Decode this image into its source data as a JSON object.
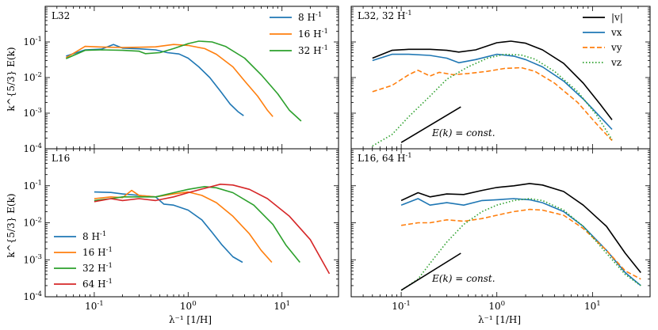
{
  "figure": {
    "ylabel": "k^{5/3} E(k)",
    "xlabel": "λ⁻¹ [1/H]",
    "colors": {
      "blue": "#1f77b4",
      "orange": "#ff7f0e",
      "green": "#2ca02c",
      "red": "#d62728",
      "black": "#000000"
    }
  },
  "chart_data": [
    {
      "panel": "top-left",
      "type": "line",
      "title": "L32",
      "xscale": "log",
      "yscale": "log",
      "xlim": [
        0.03,
        40
      ],
      "ylim": [
        0.0001,
        1
      ],
      "xticks": [],
      "yticks": [
        "10^-4",
        "10^-3",
        "10^-2",
        "10^-1"
      ],
      "legend": "top-right",
      "series": [
        {
          "name": "8 H^-1",
          "color": "#1f77b4",
          "style": "solid",
          "points": [
            [
              0.05,
              0.04
            ],
            [
              0.08,
              0.06
            ],
            [
              0.12,
              0.063
            ],
            [
              0.16,
              0.085
            ],
            [
              0.2,
              0.067
            ],
            [
              0.3,
              0.064
            ],
            [
              0.45,
              0.06
            ],
            [
              0.6,
              0.05
            ],
            [
              0.8,
              0.046
            ],
            [
              1.0,
              0.035
            ],
            [
              1.3,
              0.02
            ],
            [
              1.7,
              0.01
            ],
            [
              2.2,
              0.0042
            ],
            [
              2.8,
              0.0018
            ],
            [
              3.4,
              0.0011
            ],
            [
              3.9,
              0.00085
            ]
          ]
        },
        {
          "name": "16 H^-1",
          "color": "#ff7f0e",
          "style": "solid",
          "points": [
            [
              0.05,
              0.036
            ],
            [
              0.08,
              0.075
            ],
            [
              0.12,
              0.072
            ],
            [
              0.2,
              0.07
            ],
            [
              0.3,
              0.071
            ],
            [
              0.45,
              0.073
            ],
            [
              0.7,
              0.085
            ],
            [
              1.0,
              0.08
            ],
            [
              1.5,
              0.065
            ],
            [
              2.0,
              0.045
            ],
            [
              3.0,
              0.02
            ],
            [
              4.0,
              0.008
            ],
            [
              5.5,
              0.003
            ],
            [
              7.0,
              0.0012
            ],
            [
              8.0,
              0.0008
            ]
          ]
        },
        {
          "name": "32 H^-1",
          "color": "#2ca02c",
          "style": "solid",
          "points": [
            [
              0.05,
              0.034
            ],
            [
              0.08,
              0.058
            ],
            [
              0.12,
              0.06
            ],
            [
              0.2,
              0.058
            ],
            [
              0.3,
              0.055
            ],
            [
              0.35,
              0.047
            ],
            [
              0.5,
              0.05
            ],
            [
              0.7,
              0.065
            ],
            [
              1.0,
              0.09
            ],
            [
              1.3,
              0.105
            ],
            [
              1.8,
              0.1
            ],
            [
              2.5,
              0.075
            ],
            [
              4.0,
              0.035
            ],
            [
              6.0,
              0.012
            ],
            [
              9.0,
              0.0035
            ],
            [
              12.0,
              0.0012
            ],
            [
              16.0,
              0.0006
            ]
          ]
        }
      ]
    },
    {
      "panel": "top-right",
      "type": "line",
      "title": "L32, 32 H^-1",
      "xscale": "log",
      "yscale": "log",
      "xlim": [
        0.03,
        40
      ],
      "ylim": [
        0.0001,
        1
      ],
      "legend": "top-right",
      "annotation": "E(k) = const.",
      "series": [
        {
          "name": "|v|",
          "color": "#000000",
          "style": "solid",
          "points": [
            [
              0.05,
              0.035
            ],
            [
              0.08,
              0.058
            ],
            [
              0.12,
              0.062
            ],
            [
              0.2,
              0.062
            ],
            [
              0.3,
              0.058
            ],
            [
              0.4,
              0.052
            ],
            [
              0.6,
              0.06
            ],
            [
              1.0,
              0.095
            ],
            [
              1.4,
              0.105
            ],
            [
              2.0,
              0.092
            ],
            [
              3.0,
              0.06
            ],
            [
              5.0,
              0.025
            ],
            [
              8.0,
              0.007
            ],
            [
              12.0,
              0.0018
            ],
            [
              16.0,
              0.00065
            ]
          ]
        },
        {
          "name": "v_x",
          "color": "#1f77b4",
          "style": "solid",
          "points": [
            [
              0.05,
              0.03
            ],
            [
              0.08,
              0.045
            ],
            [
              0.12,
              0.045
            ],
            [
              0.2,
              0.042
            ],
            [
              0.3,
              0.035
            ],
            [
              0.4,
              0.026
            ],
            [
              0.6,
              0.032
            ],
            [
              1.0,
              0.045
            ],
            [
              1.5,
              0.04
            ],
            [
              2.0,
              0.032
            ],
            [
              3.0,
              0.02
            ],
            [
              5.0,
              0.008
            ],
            [
              8.0,
              0.0025
            ],
            [
              12.0,
              0.0008
            ],
            [
              16.0,
              0.00035
            ]
          ]
        },
        {
          "name": "v_y",
          "color": "#ff7f0e",
          "style": "dashed",
          "points": [
            [
              0.05,
              0.004
            ],
            [
              0.08,
              0.006
            ],
            [
              0.12,
              0.012
            ],
            [
              0.15,
              0.016
            ],
            [
              0.2,
              0.011
            ],
            [
              0.25,
              0.014
            ],
            [
              0.35,
              0.012
            ],
            [
              0.5,
              0.013
            ],
            [
              0.8,
              0.015
            ],
            [
              1.2,
              0.018
            ],
            [
              1.8,
              0.019
            ],
            [
              2.5,
              0.015
            ],
            [
              4.0,
              0.007
            ],
            [
              7.0,
              0.002
            ],
            [
              11.0,
              0.0005
            ],
            [
              16.0,
              0.00017
            ]
          ]
        },
        {
          "name": "v_z",
          "color": "#2ca02c",
          "style": "dotted",
          "points": [
            [
              0.05,
              0.00012
            ],
            [
              0.08,
              0.00025
            ],
            [
              0.12,
              0.0008
            ],
            [
              0.2,
              0.003
            ],
            [
              0.3,
              0.009
            ],
            [
              0.5,
              0.02
            ],
            [
              0.8,
              0.035
            ],
            [
              1.2,
              0.045
            ],
            [
              1.8,
              0.043
            ],
            [
              2.5,
              0.033
            ],
            [
              4.0,
              0.015
            ],
            [
              7.0,
              0.004
            ],
            [
              11.0,
              0.0009
            ],
            [
              16.0,
              0.00018
            ]
          ]
        },
        {
          "name": "E(k) = const.",
          "color": "#000000",
          "style": "solid",
          "points": [
            [
              0.1,
              0.00015
            ],
            [
              0.42,
              0.0015
            ]
          ]
        }
      ]
    },
    {
      "panel": "bottom-left",
      "type": "line",
      "title": "L16",
      "xscale": "log",
      "yscale": "log",
      "xlim": [
        0.03,
        40
      ],
      "ylim": [
        0.0001,
        1
      ],
      "xticks": [
        "10^-1",
        "10^0",
        "10^1"
      ],
      "yticks": [
        "10^-4",
        "10^-3",
        "10^-2",
        "10^-1"
      ],
      "xlabel": "λ⁻¹ [1/H]",
      "legend": "bottom-left",
      "series": [
        {
          "name": "8 H^-1",
          "color": "#1f77b4",
          "style": "solid",
          "points": [
            [
              0.1,
              0.068
            ],
            [
              0.15,
              0.066
            ],
            [
              0.2,
              0.06
            ],
            [
              0.3,
              0.055
            ],
            [
              0.45,
              0.05
            ],
            [
              0.55,
              0.032
            ],
            [
              0.7,
              0.03
            ],
            [
              1.0,
              0.022
            ],
            [
              1.4,
              0.012
            ],
            [
              1.8,
              0.0055
            ],
            [
              2.3,
              0.0025
            ],
            [
              3.0,
              0.0012
            ],
            [
              3.8,
              0.00085
            ]
          ]
        },
        {
          "name": "16 H^-1",
          "color": "#ff7f0e",
          "style": "solid",
          "points": [
            [
              0.1,
              0.045
            ],
            [
              0.15,
              0.05
            ],
            [
              0.2,
              0.048
            ],
            [
              0.25,
              0.075
            ],
            [
              0.3,
              0.055
            ],
            [
              0.45,
              0.05
            ],
            [
              0.7,
              0.06
            ],
            [
              1.0,
              0.068
            ],
            [
              1.4,
              0.055
            ],
            [
              2.0,
              0.035
            ],
            [
              3.0,
              0.015
            ],
            [
              4.5,
              0.005
            ],
            [
              6.0,
              0.0018
            ],
            [
              7.8,
              0.00085
            ]
          ]
        },
        {
          "name": "32 H^-1",
          "color": "#2ca02c",
          "style": "solid",
          "points": [
            [
              0.1,
              0.04
            ],
            [
              0.15,
              0.045
            ],
            [
              0.2,
              0.05
            ],
            [
              0.3,
              0.05
            ],
            [
              0.45,
              0.05
            ],
            [
              0.7,
              0.065
            ],
            [
              1.0,
              0.08
            ],
            [
              1.5,
              0.095
            ],
            [
              2.0,
              0.088
            ],
            [
              3.0,
              0.065
            ],
            [
              5.0,
              0.03
            ],
            [
              8.0,
              0.009
            ],
            [
              11.0,
              0.0025
            ],
            [
              15.5,
              0.00085
            ]
          ]
        },
        {
          "name": "64 H^-1",
          "color": "#d62728",
          "style": "solid",
          "points": [
            [
              0.1,
              0.037
            ],
            [
              0.15,
              0.045
            ],
            [
              0.2,
              0.04
            ],
            [
              0.3,
              0.045
            ],
            [
              0.45,
              0.04
            ],
            [
              0.7,
              0.05
            ],
            [
              1.0,
              0.065
            ],
            [
              1.5,
              0.085
            ],
            [
              2.2,
              0.11
            ],
            [
              3.0,
              0.105
            ],
            [
              4.5,
              0.08
            ],
            [
              7.0,
              0.045
            ],
            [
              12.0,
              0.015
            ],
            [
              20.0,
              0.0035
            ],
            [
              32.0,
              0.00042
            ]
          ]
        }
      ]
    },
    {
      "panel": "bottom-right",
      "type": "line",
      "title": "L16, 64 H^-1",
      "xscale": "log",
      "yscale": "log",
      "xlim": [
        0.03,
        40
      ],
      "ylim": [
        0.0001,
        1
      ],
      "xticks": [
        "10^-1",
        "10^0",
        "10^1"
      ],
      "xlabel": "λ⁻¹ [1/H]",
      "annotation": "E(k) = const.",
      "series": [
        {
          "name": "|v|",
          "color": "#000000",
          "style": "solid",
          "points": [
            [
              0.1,
              0.04
            ],
            [
              0.15,
              0.065
            ],
            [
              0.2,
              0.05
            ],
            [
              0.3,
              0.06
            ],
            [
              0.45,
              0.058
            ],
            [
              0.7,
              0.075
            ],
            [
              1.0,
              0.09
            ],
            [
              1.5,
              0.1
            ],
            [
              2.2,
              0.115
            ],
            [
              3.0,
              0.105
            ],
            [
              5.0,
              0.07
            ],
            [
              8.0,
              0.03
            ],
            [
              14.0,
              0.008
            ],
            [
              22.0,
              0.0015
            ],
            [
              32.0,
              0.00045
            ]
          ]
        },
        {
          "name": "v_x",
          "color": "#1f77b4",
          "style": "solid",
          "points": [
            [
              0.1,
              0.03
            ],
            [
              0.15,
              0.045
            ],
            [
              0.2,
              0.03
            ],
            [
              0.3,
              0.035
            ],
            [
              0.45,
              0.03
            ],
            [
              0.7,
              0.04
            ],
            [
              1.0,
              0.042
            ],
            [
              1.5,
              0.045
            ],
            [
              2.2,
              0.042
            ],
            [
              3.0,
              0.035
            ],
            [
              5.0,
              0.02
            ],
            [
              8.0,
              0.008
            ],
            [
              14.0,
              0.0018
            ],
            [
              22.0,
              0.00045
            ],
            [
              32.0,
              0.0002
            ]
          ]
        },
        {
          "name": "v_y",
          "color": "#ff7f0e",
          "style": "dashed",
          "points": [
            [
              0.1,
              0.0085
            ],
            [
              0.15,
              0.01
            ],
            [
              0.2,
              0.01
            ],
            [
              0.3,
              0.012
            ],
            [
              0.45,
              0.011
            ],
            [
              0.7,
              0.013
            ],
            [
              1.0,
              0.016
            ],
            [
              1.5,
              0.02
            ],
            [
              2.2,
              0.023
            ],
            [
              3.0,
              0.022
            ],
            [
              5.0,
              0.016
            ],
            [
              8.0,
              0.007
            ],
            [
              14.0,
              0.0018
            ],
            [
              22.0,
              0.0005
            ],
            [
              32.0,
              0.0003
            ]
          ]
        },
        {
          "name": "v_z",
          "color": "#2ca02c",
          "style": "dotted",
          "points": [
            [
              0.1,
              0.00015
            ],
            [
              0.15,
              0.0003
            ],
            [
              0.2,
              0.0008
            ],
            [
              0.3,
              0.003
            ],
            [
              0.45,
              0.009
            ],
            [
              0.7,
              0.02
            ],
            [
              1.0,
              0.03
            ],
            [
              1.5,
              0.04
            ],
            [
              2.2,
              0.045
            ],
            [
              3.0,
              0.04
            ],
            [
              5.0,
              0.022
            ],
            [
              8.0,
              0.008
            ],
            [
              14.0,
              0.0015
            ],
            [
              22.0,
              0.0004
            ],
            [
              32.0,
              0.0002
            ]
          ]
        },
        {
          "name": "E(k) = const.",
          "color": "#000000",
          "style": "solid",
          "points": [
            [
              0.1,
              0.00015
            ],
            [
              0.42,
              0.0015
            ]
          ]
        }
      ]
    }
  ]
}
